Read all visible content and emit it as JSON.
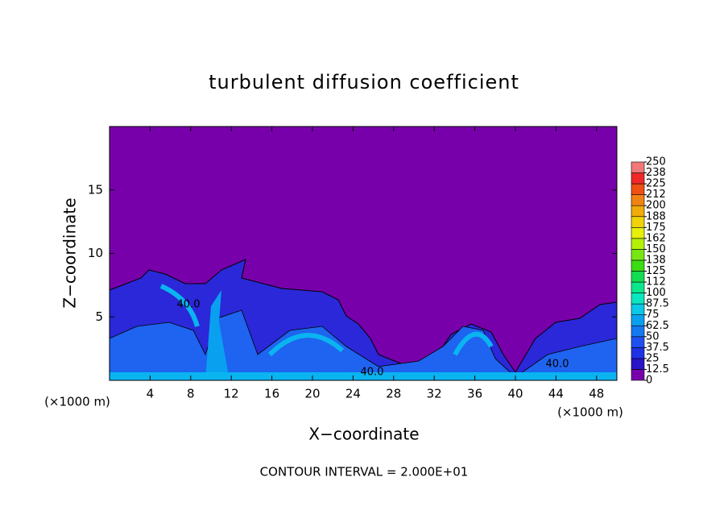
{
  "chart_data": {
    "type": "contour",
    "title": "turbulent diffusion coefficient",
    "xlabel": "X−coordinate",
    "ylabel": "Z−coordinate",
    "x_unit_left": "(×1000 m)",
    "x_unit_right": "(×1000 m)",
    "footnote": "CONTOUR INTERVAL = 2.000E+01",
    "contour_labels": [
      "40.0",
      "40.0",
      "40.0"
    ],
    "xlim": [
      0,
      50
    ],
    "xticks": [
      4,
      8,
      12,
      16,
      20,
      24,
      28,
      32,
      36,
      40,
      44,
      48
    ],
    "ylim": [
      0,
      20
    ],
    "yticks": [
      5,
      10,
      15
    ],
    "colorbar": {
      "ticks": [
        0,
        12.5,
        25,
        37.5,
        50,
        62.5,
        75,
        87.5,
        100,
        {
          "value": 112.5,
          "label": "112"
        },
        125,
        {
          "value": 137.5,
          "label": "138"
        },
        150,
        {
          "value": 162.5,
          "label": "162"
        },
        175,
        {
          "value": 187.5,
          "label": "188"
        },
        200,
        {
          "value": 212.5,
          "label": "212"
        },
        225,
        {
          "value": 237.5,
          "label": "238"
        },
        250
      ],
      "colors": [
        "#7800aa",
        "#2a14c8",
        "#1e32e6",
        "#1e50f0",
        "#1478f0",
        "#0aa0f0",
        "#0ac8e6",
        "#0ae6be",
        "#0ae68c",
        "#14dc50",
        "#3cdc14",
        "#78e614",
        "#b4f00a",
        "#e6f00a",
        "#f0d20a",
        "#f0aa0a",
        "#f08214",
        "#f05014",
        "#f02828",
        "#f07878"
      ]
    }
  }
}
